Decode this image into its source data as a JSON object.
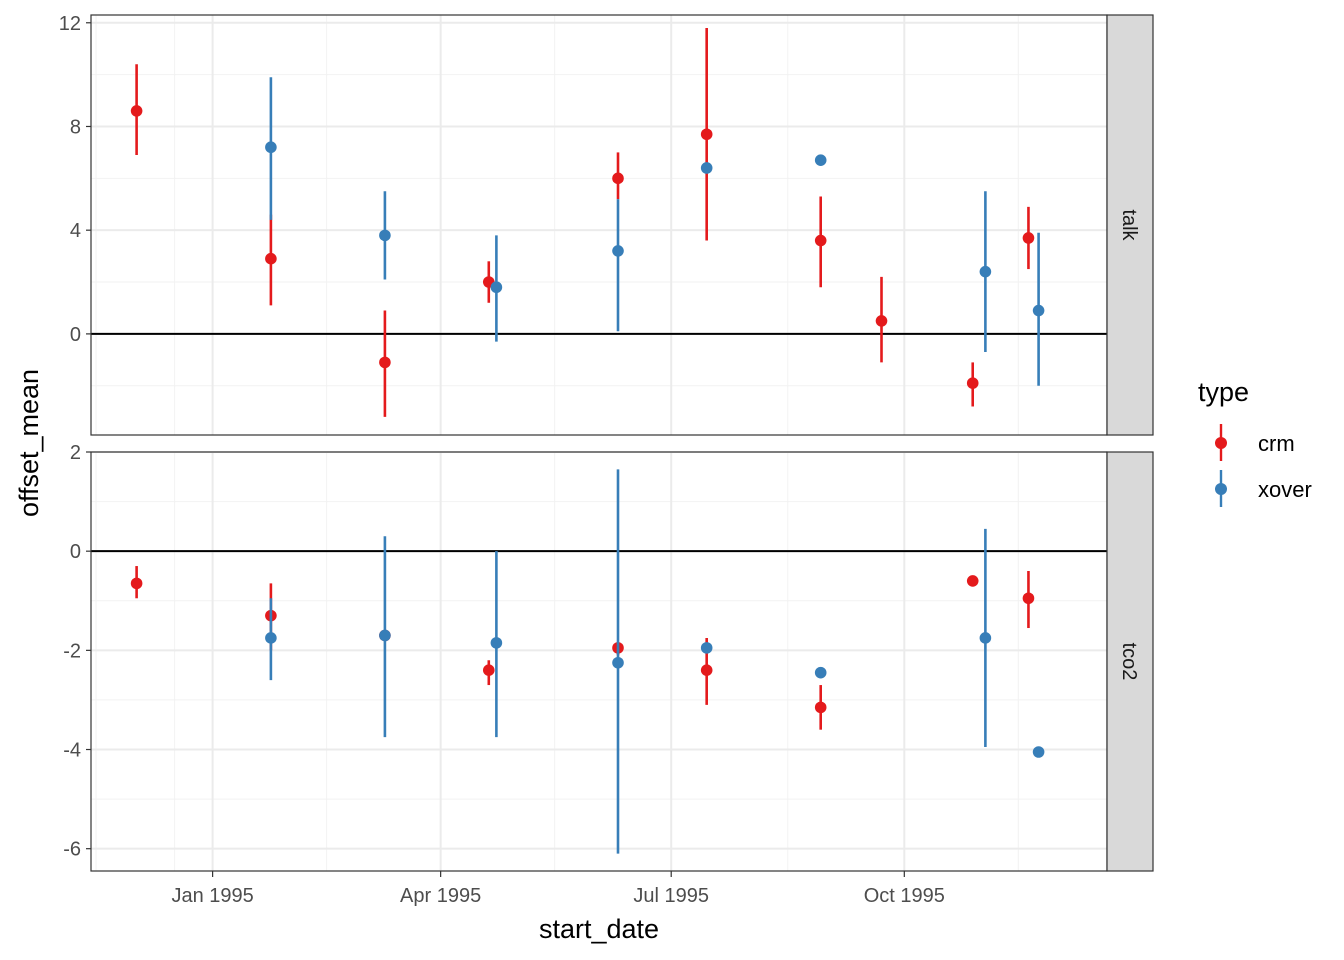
{
  "chart_data": {
    "type": "pointrange",
    "xlabel": "start_date",
    "ylabel": "offset_mean",
    "x_ticks": [
      "Jan 1995",
      "Apr 1995",
      "Jul 1995",
      "Oct 1995"
    ],
    "x_tick_values": [
      0,
      90,
      181,
      273
    ],
    "x_range": [
      -48,
      353
    ],
    "legend": {
      "title": "type",
      "position": "right",
      "entries": [
        {
          "name": "crm",
          "color": "#E41A1C"
        },
        {
          "name": "xover",
          "color": "#377EB8"
        }
      ]
    },
    "panels": [
      {
        "strip": "talk",
        "ylim": [
          -3.9,
          12.3
        ],
        "y_ticks": [
          "0",
          "4",
          "8",
          "12"
        ],
        "y_tick_values": [
          0,
          4,
          8,
          12
        ],
        "series": [
          {
            "name": "crm",
            "points": [
              {
                "x": -30,
                "y": 8.6,
                "lo": 6.9,
                "hi": 10.4
              },
              {
                "x": 23,
                "y": 2.9,
                "lo": 1.1,
                "hi": 4.6
              },
              {
                "x": 68,
                "y": -1.1,
                "lo": -3.2,
                "hi": 0.9
              },
              {
                "x": 109,
                "y": 2.0,
                "lo": 1.2,
                "hi": 2.8
              },
              {
                "x": 160,
                "y": 6.0,
                "lo": 5.2,
                "hi": 7.0
              },
              {
                "x": 195,
                "y": 7.7,
                "lo": 3.6,
                "hi": 11.8
              },
              {
                "x": 240,
                "y": 3.6,
                "lo": 1.8,
                "hi": 5.3
              },
              {
                "x": 264,
                "y": 0.5,
                "lo": -1.1,
                "hi": 2.2
              },
              {
                "x": 300,
                "y": -1.9,
                "lo": -2.8,
                "hi": -1.1
              },
              {
                "x": 322,
                "y": 3.7,
                "lo": 2.5,
                "hi": 4.9
              }
            ]
          },
          {
            "name": "xover",
            "points": [
              {
                "x": 23,
                "y": 7.2,
                "lo": 4.4,
                "hi": 9.9
              },
              {
                "x": 68,
                "y": 3.8,
                "lo": 2.1,
                "hi": 5.5
              },
              {
                "x": 112,
                "y": 1.8,
                "lo": -0.3,
                "hi": 3.8
              },
              {
                "x": 160,
                "y": 3.2,
                "lo": 0.1,
                "hi": 5.2
              },
              {
                "x": 195,
                "y": 6.4,
                "lo": 6.4,
                "hi": 6.4
              },
              {
                "x": 240,
                "y": 6.7,
                "lo": 6.7,
                "hi": 6.7
              },
              {
                "x": 305,
                "y": 2.4,
                "lo": -0.7,
                "hi": 5.5
              },
              {
                "x": 326,
                "y": 0.9,
                "lo": -2.0,
                "hi": 3.9
              }
            ]
          }
        ]
      },
      {
        "strip": "tco2",
        "ylim": [
          -6.45,
          2.0
        ],
        "y_ticks": [
          "-6",
          "-4",
          "-2",
          "0",
          "2"
        ],
        "y_tick_values": [
          -6,
          -4,
          -2,
          0,
          2
        ],
        "series": [
          {
            "name": "crm",
            "points": [
              {
                "x": -30,
                "y": -0.65,
                "lo": -0.95,
                "hi": -0.3
              },
              {
                "x": 23,
                "y": -1.3,
                "lo": -2.0,
                "hi": -0.65
              },
              {
                "x": 68,
                "y": -1.7,
                "lo": -1.7,
                "hi": -1.7
              },
              {
                "x": 109,
                "y": -2.4,
                "lo": -2.7,
                "hi": -2.2
              },
              {
                "x": 160,
                "y": -1.95,
                "lo": -2.1,
                "hi": -1.85
              },
              {
                "x": 195,
                "y": -2.4,
                "lo": -3.1,
                "hi": -1.75
              },
              {
                "x": 240,
                "y": -3.15,
                "lo": -3.6,
                "hi": -2.7
              },
              {
                "x": 300,
                "y": -0.6,
                "lo": -0.6,
                "hi": -0.6
              },
              {
                "x": 322,
                "y": -0.95,
                "lo": -1.55,
                "hi": -0.4
              }
            ]
          },
          {
            "name": "xover",
            "points": [
              {
                "x": 23,
                "y": -1.75,
                "lo": -2.6,
                "hi": -0.95
              },
              {
                "x": 68,
                "y": -1.7,
                "lo": -3.75,
                "hi": 0.3
              },
              {
                "x": 112,
                "y": -1.85,
                "lo": -3.75,
                "hi": 0.0
              },
              {
                "x": 160,
                "y": -2.25,
                "lo": -6.1,
                "hi": 1.65
              },
              {
                "x": 195,
                "y": -1.95,
                "lo": -1.95,
                "hi": -1.95
              },
              {
                "x": 240,
                "y": -2.45,
                "lo": -2.45,
                "hi": -2.45
              },
              {
                "x": 305,
                "y": -1.75,
                "lo": -3.95,
                "hi": 0.45
              },
              {
                "x": 326,
                "y": -4.05,
                "lo": -4.05,
                "hi": -4.05
              }
            ]
          }
        ]
      }
    ]
  }
}
